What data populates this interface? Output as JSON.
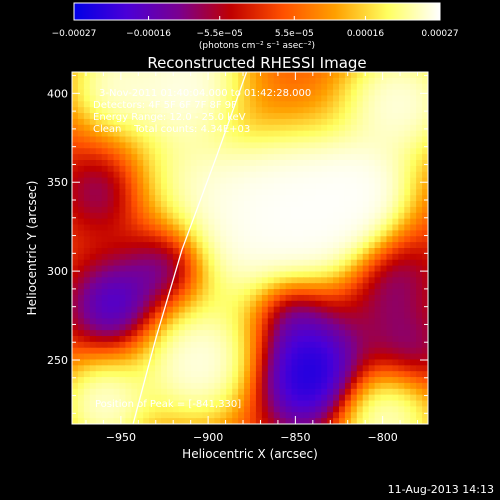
{
  "chart_data": {
    "type": "heatmap",
    "title": "Reconstructed RHESSI Image",
    "xlabel": "Heliocentric X (arcsec)",
    "ylabel": "Heliocentric Y (arcsec)",
    "xlim": [
      -978,
      -774
    ],
    "ylim": [
      214,
      412
    ],
    "x_ticks": [
      -950,
      -900,
      -850,
      -800
    ],
    "x_tick_labels": [
      "−950",
      "−900",
      "−850",
      "−800"
    ],
    "y_ticks": [
      250,
      300,
      350,
      400
    ],
    "y_tick_labels": [
      "250",
      "300",
      "350",
      "400"
    ],
    "colorbar": {
      "ticks": [
        -0.00027,
        -0.00016,
        -5.5e-05,
        5.5e-05,
        0.00016,
        0.00027
      ],
      "tick_labels": [
        "−0.00027",
        "−0.00016",
        "−5.5e−05",
        "5.5e−05",
        "0.00016",
        "0.00027"
      ],
      "unit_label": "(photons cm⁻² s⁻¹ asec⁻²)",
      "range": [
        -0.00027,
        0.00027
      ],
      "colormap": [
        "#0000e6",
        "#4a00d8",
        "#7a0090",
        "#c00000",
        "#ff5000",
        "#ffa000",
        "#ffff60",
        "#ffffff"
      ]
    },
    "annotations": [
      "3-Nov-2011 01:40:04.000 to 01:42:28.000",
      "Detectors: 4F 5F 6F 7F 8F 9F",
      "Energy Range: 12.0 - 25.0 keV",
      "Clean    Total counts: 4.34E+03"
    ],
    "peak_label": "Position of Peak = [-841,330]",
    "peak": {
      "x": -841,
      "y": 330
    },
    "sources": [
      {
        "x": -840,
        "y": 330,
        "strength": 2.4,
        "width": 28
      },
      {
        "x": -895,
        "y": 350,
        "strength": 1.6,
        "width": 30
      },
      {
        "x": -910,
        "y": 405,
        "strength": 1.7,
        "width": 22
      },
      {
        "x": -955,
        "y": 405,
        "strength": 1.2,
        "width": 18
      },
      {
        "x": -790,
        "y": 395,
        "strength": 1.6,
        "width": 22
      },
      {
        "x": -810,
        "y": 345,
        "strength": 1.2,
        "width": 18
      },
      {
        "x": -905,
        "y": 248,
        "strength": 1.7,
        "width": 22
      },
      {
        "x": -960,
        "y": 225,
        "strength": 1.4,
        "width": 18
      },
      {
        "x": -800,
        "y": 220,
        "strength": 1.5,
        "width": 22
      },
      {
        "x": -880,
        "y": 300,
        "strength": 0.8,
        "width": 22
      },
      {
        "x": -920,
        "y": 305,
        "strength": -0.9,
        "width": 18
      },
      {
        "x": -855,
        "y": 285,
        "strength": -0.9,
        "width": 18
      },
      {
        "x": -840,
        "y": 240,
        "strength": -1.7,
        "width": 22
      },
      {
        "x": -955,
        "y": 280,
        "strength": -1.0,
        "width": 18
      },
      {
        "x": -890,
        "y": 380,
        "strength": -0.7,
        "width": 22
      },
      {
        "x": -800,
        "y": 300,
        "strength": -0.8,
        "width": 22
      },
      {
        "x": -960,
        "y": 345,
        "strength": -0.6,
        "width": 18
      },
      {
        "x": -785,
        "y": 250,
        "strength": -0.7,
        "width": 18
      }
    ],
    "limb_curve": [
      {
        "x": -943,
        "y": 214
      },
      {
        "x": -930,
        "y": 262
      },
      {
        "x": -915,
        "y": 312
      },
      {
        "x": -895,
        "y": 365
      },
      {
        "x": -878,
        "y": 412
      }
    ]
  },
  "footer": {
    "date": "11-Aug-2013 14:13"
  },
  "colors": {
    "background": "#000000",
    "text": "#ffffff",
    "limb": "#ffffff"
  }
}
